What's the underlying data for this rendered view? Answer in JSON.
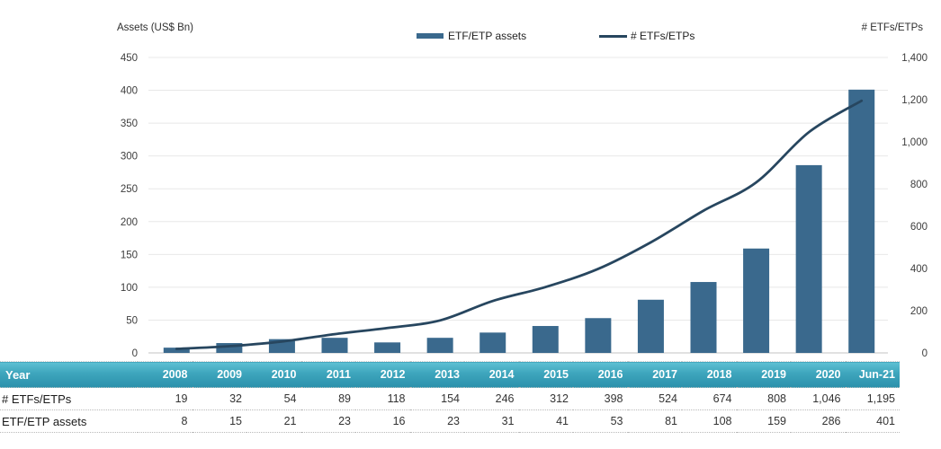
{
  "chart": {
    "left_axis_title": "Assets (US$ Bn)",
    "right_axis_title": "# ETFs/ETPs",
    "legend": [
      {
        "label": "ETF/ETP assets",
        "swatch": "bar"
      },
      {
        "label": "# ETFs/ETPs",
        "swatch": "line"
      }
    ]
  },
  "chart_data": {
    "type": "combo",
    "categories": [
      "2008",
      "2009",
      "2010",
      "2011",
      "2012",
      "2013",
      "2014",
      "2015",
      "2016",
      "2017",
      "2018",
      "2019",
      "2020",
      "Jun-21"
    ],
    "series": [
      {
        "name": "ETF/ETP assets",
        "key": "assets",
        "type": "bar",
        "axis": "left",
        "values": [
          8,
          15,
          21,
          23,
          16,
          23,
          31,
          41,
          53,
          81,
          108,
          159,
          286,
          401
        ]
      },
      {
        "name": "# ETFs/ETPs",
        "key": "etfs_etps_count",
        "type": "line",
        "axis": "right",
        "values": [
          19,
          32,
          54,
          89,
          118,
          154,
          246,
          312,
          398,
          524,
          674,
          808,
          1046,
          1195
        ]
      }
    ],
    "left_axis": {
      "title": "Assets (US$ Bn)",
      "min": 0,
      "max": 450,
      "step": 50
    },
    "right_axis": {
      "title": "# ETFs/ETPs",
      "min": 0,
      "max": 1400,
      "step": 200
    },
    "grid": true,
    "legend_position": "top-center"
  },
  "table": {
    "year_header": "Year",
    "rows": [
      {
        "label": "# ETFs/ETPs",
        "series_key": "etfs_etps_count"
      },
      {
        "label": "ETF/ETP assets",
        "series_key": "assets"
      }
    ]
  },
  "colors": {
    "bar": "#3a698d",
    "line": "#27465f",
    "grid": "#e8e8e8",
    "axis_baseline": "#cfcfcf",
    "tick_text": "#3d3d3d",
    "table_header_top": "#5ec0d3",
    "table_header_bottom": "#2b90ab",
    "table_header_text": "#ffffff",
    "table_text": "#333333"
  }
}
